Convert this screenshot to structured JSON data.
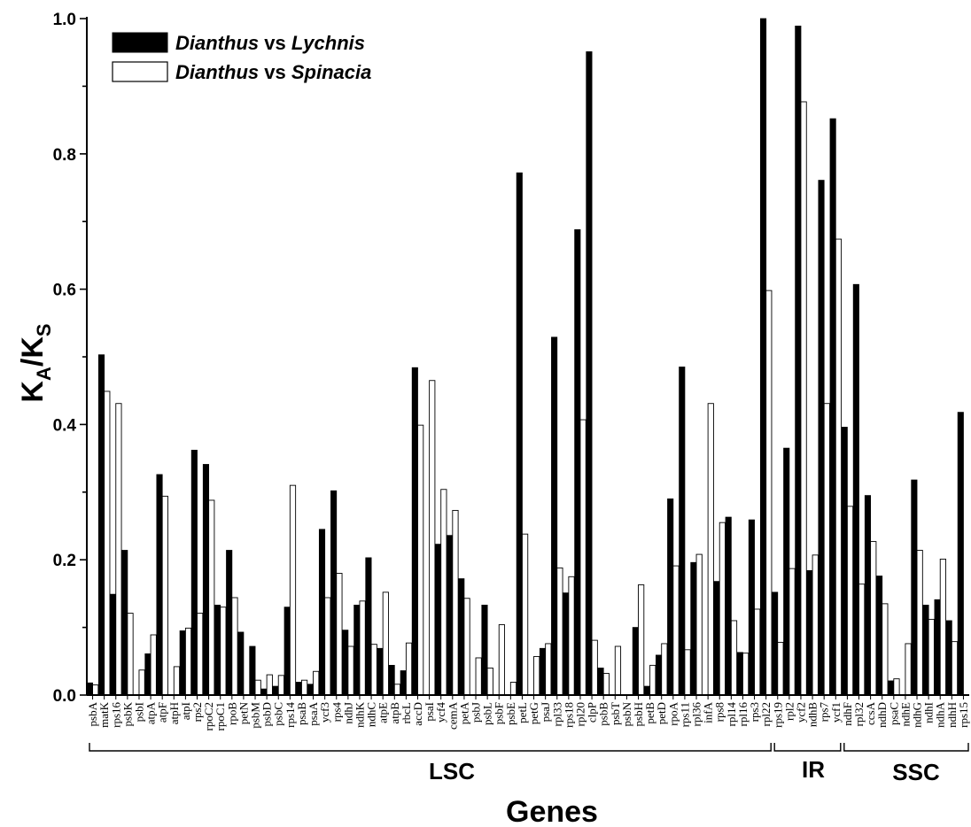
{
  "chart_data": {
    "type": "bar",
    "xlabel": "Genes",
    "ylabel_main": "K",
    "ylabel_sub1": "A",
    "ylabel_sep": "/K",
    "ylabel_sub2": "S",
    "ylim": [
      0,
      1.0
    ],
    "yticks": [
      "0.0",
      "0.2",
      "0.4",
      "0.6",
      "0.8",
      "1.0"
    ],
    "legend": {
      "placement": "top-left",
      "entries": [
        {
          "genus1": "Dianthus",
          "vs": "vs",
          "genus2": "Lychnis",
          "fill": "#000000"
        },
        {
          "genus1": "Dianthus",
          "vs": "vs",
          "genus2": "Spinacia",
          "fill": "#ffffff"
        }
      ]
    },
    "categories": [
      "psbA",
      "matK",
      "rps16",
      "psbK",
      "psbI",
      "atpA",
      "atpF",
      "atpH",
      "atpI",
      "rps2",
      "rpoC2",
      "rpoC1",
      "rpoB",
      "petN",
      "psbM",
      "psbD",
      "psbC",
      "rps14",
      "psaB",
      "psaA",
      "ycf3",
      "rps4",
      "ndhJ",
      "ndhK",
      "ndhC",
      "atpE",
      "atpB",
      "rbcL",
      "accD",
      "psaI",
      "ycf4",
      "cemA",
      "petA",
      "psbJ",
      "psbL",
      "psbF",
      "psbE",
      "petL",
      "petG",
      "psaJ",
      "rpl33",
      "rps18",
      "rpl20",
      "clpP",
      "psbB",
      "psbT",
      "psbN",
      "psbH",
      "petB",
      "petD",
      "rpoA",
      "rps11",
      "rpl36",
      "infA",
      "rps8",
      "rpl14",
      "rpl16",
      "rps3",
      "rpl22",
      "rps19",
      "rpl2",
      "ycf2",
      "ndhB",
      "rps7",
      "ycf1",
      "ndhF",
      "rpl32",
      "ccsA",
      "ndhD",
      "psaC",
      "ndhE",
      "ndhG",
      "ndhI",
      "ndhA",
      "ndhH",
      "rps15"
    ],
    "series": [
      {
        "name": "Dianthus vs Lychnis",
        "values": [
          0.018,
          0.503,
          0.149,
          0.214,
          0.0,
          0.061,
          0.326,
          0.0,
          0.095,
          0.362,
          0.341,
          0.133,
          0.214,
          0.093,
          0.072,
          0.009,
          0.013,
          0.13,
          0.019,
          0.016,
          0.245,
          0.302,
          0.096,
          0.133,
          0.203,
          0.069,
          0.044,
          0.036,
          0.484,
          0.0,
          0.223,
          0.236,
          0.172,
          0.0,
          0.133,
          0.0,
          0.0,
          0.772,
          0.0,
          0.069,
          0.529,
          0.151,
          0.688,
          0.951,
          0.04,
          0.0,
          0.0,
          0.1,
          0.013,
          0.059,
          0.29,
          0.485,
          0.196,
          0.0,
          0.168,
          0.263,
          0.063,
          0.259,
          1.0,
          0.152,
          0.365,
          0.989,
          0.184,
          0.761,
          0.852,
          0.396,
          0.607,
          0.295,
          0.176,
          0.021,
          0.0,
          0.318,
          0.133,
          0.141,
          0.11,
          0.418
        ]
      },
      {
        "name": "Dianthus vs Spinacia",
        "values": [
          0.015,
          0.449,
          0.431,
          0.121,
          0.037,
          0.089,
          0.294,
          0.042,
          0.099,
          0.121,
          0.288,
          0.13,
          0.144,
          0.0,
          0.022,
          0.03,
          0.029,
          0.31,
          0.022,
          0.035,
          0.144,
          0.18,
          0.072,
          0.139,
          0.075,
          0.152,
          0.016,
          0.077,
          0.399,
          0.465,
          0.304,
          0.273,
          0.143,
          0.055,
          0.04,
          0.104,
          0.019,
          0.238,
          0.057,
          0.076,
          0.188,
          0.175,
          0.407,
          0.081,
          0.032,
          0.072,
          0.0,
          0.163,
          0.044,
          0.076,
          0.191,
          0.067,
          0.208,
          0.431,
          0.255,
          0.11,
          0.062,
          0.127,
          0.598,
          0.078,
          0.187,
          0.877,
          0.207,
          0.431,
          0.674,
          0.279,
          0.164,
          0.227,
          0.135,
          0.024,
          0.076,
          0.214,
          0.112,
          0.201,
          0.079,
          0.0
        ]
      }
    ],
    "regions": [
      {
        "label": "LSC",
        "start": "psbA",
        "end": "rpl22"
      },
      {
        "label": "IR",
        "start": "rps19",
        "end": "ycf1"
      },
      {
        "label": "SSC",
        "start": "ndhF",
        "end": "rps15"
      }
    ]
  }
}
